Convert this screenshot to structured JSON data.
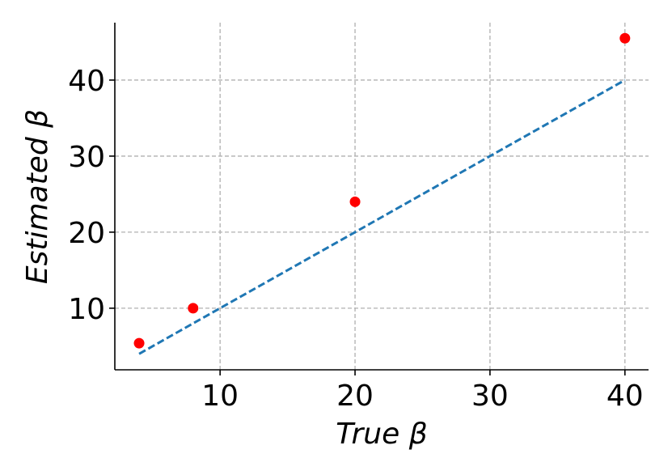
{
  "chart_data": {
    "type": "scatter",
    "xlabel": "True β",
    "ylabel": "Estimated β",
    "series": [
      {
        "type": "scatter",
        "color": "#ff0000",
        "x": [
          4,
          8,
          20,
          40
        ],
        "values": [
          5.4,
          10,
          24,
          45.5
        ]
      },
      {
        "type": "line",
        "color": "#1f77b4",
        "dashed": true,
        "x": [
          4,
          40
        ],
        "values": [
          4,
          40
        ]
      }
    ],
    "xlim": [
      2.2,
      41.75
    ],
    "ylim": [
      1.9,
      47.55
    ],
    "xticks": [
      10,
      20,
      30,
      40
    ],
    "yticks": [
      10,
      20,
      30,
      40
    ],
    "grid": true
  }
}
